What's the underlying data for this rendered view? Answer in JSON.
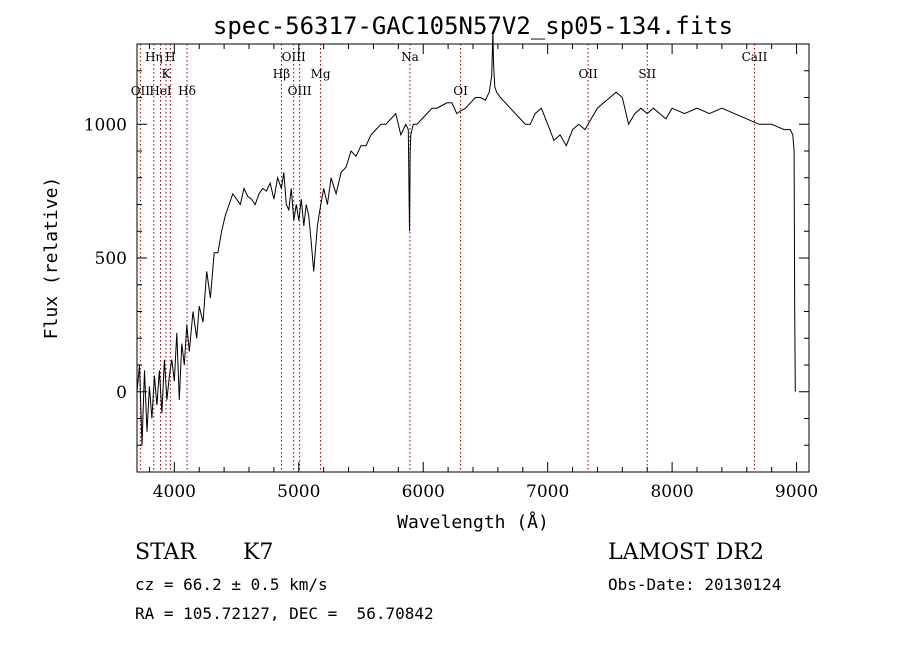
{
  "chart_data": {
    "type": "line",
    "title": "spec-56317-GAC105N57V2_sp05-134.fits",
    "xlabel": "Wavelength (Å)",
    "ylabel": "Flux (relative)",
    "xlim": [
      3700,
      9100
    ],
    "ylim": [
      -300,
      1300
    ],
    "xticks": [
      4000,
      5000,
      6000,
      7000,
      8000,
      9000
    ],
    "yticks": [
      0,
      500,
      1000
    ],
    "series": [
      {
        "x": [
          3700,
          3720,
          3740,
          3760,
          3780,
          3800,
          3820,
          3840,
          3860,
          3880,
          3900,
          3920,
          3940,
          3960,
          3980,
          4000,
          4020,
          4040,
          4060,
          4080,
          4100,
          4120,
          4150,
          4180,
          4200,
          4230,
          4260,
          4290,
          4320,
          4350,
          4380,
          4410,
          4440,
          4470,
          4500,
          4530,
          4560,
          4590,
          4620,
          4650,
          4680,
          4710,
          4740,
          4770,
          4800,
          4830,
          4860,
          4880,
          4900,
          4920,
          4940,
          4960,
          4980,
          5000,
          5020,
          5040,
          5060,
          5080,
          5100,
          5120,
          5150,
          5170,
          5185,
          5200,
          5230,
          5260,
          5300,
          5340,
          5380,
          5420,
          5460,
          5500,
          5540,
          5580,
          5620,
          5660,
          5700,
          5740,
          5780,
          5820,
          5860,
          5880,
          5890,
          5895,
          5900,
          5920,
          5950,
          5990,
          6030,
          6070,
          6110,
          6150,
          6190,
          6230,
          6270,
          6300,
          6340,
          6380,
          6420,
          6460,
          6500,
          6530,
          6550,
          6560,
          6565,
          6575,
          6590,
          6620,
          6660,
          6700,
          6740,
          6780,
          6820,
          6860,
          6900,
          6950,
          7000,
          7050,
          7100,
          7150,
          7200,
          7250,
          7300,
          7350,
          7400,
          7450,
          7500,
          7550,
          7600,
          7650,
          7700,
          7750,
          7800,
          7850,
          7900,
          7950,
          8000,
          8100,
          8200,
          8300,
          8400,
          8500,
          8600,
          8700,
          8800,
          8850,
          8900,
          8950,
          8970,
          8980,
          8985,
          8990
        ],
        "y": [
          0,
          100,
          -200,
          80,
          -150,
          20,
          -100,
          60,
          -50,
          80,
          -80,
          120,
          -30,
          60,
          120,
          40,
          220,
          -30,
          180,
          100,
          250,
          150,
          300,
          200,
          320,
          260,
          450,
          350,
          520,
          520,
          600,
          660,
          700,
          740,
          720,
          700,
          760,
          730,
          720,
          700,
          740,
          760,
          750,
          780,
          720,
          800,
          760,
          820,
          700,
          680,
          760,
          640,
          700,
          640,
          720,
          620,
          700,
          660,
          560,
          450,
          620,
          680,
          720,
          760,
          700,
          800,
          740,
          820,
          840,
          900,
          880,
          920,
          920,
          960,
          980,
          1000,
          1000,
          1020,
          1040,
          960,
          1000,
          980,
          600,
          900,
          960,
          1000,
          1000,
          1020,
          1040,
          1060,
          1060,
          1070,
          1080,
          1080,
          1040,
          1050,
          1060,
          1080,
          1100,
          1100,
          1090,
          1120,
          1180,
          1350,
          1230,
          1140,
          1120,
          1100,
          1080,
          1060,
          1040,
          1020,
          1000,
          1000,
          1040,
          1060,
          1000,
          940,
          960,
          920,
          980,
          1000,
          980,
          1020,
          1060,
          1080,
          1100,
          1120,
          1100,
          1000,
          1040,
          1060,
          1040,
          1060,
          1040,
          1020,
          1060,
          1040,
          1060,
          1040,
          1060,
          1040,
          1020,
          1000,
          1000,
          990,
          980,
          980,
          960,
          900,
          300,
          0
        ]
      }
    ],
    "lines": [
      {
        "label": "OII",
        "x": 3727,
        "row": 3
      },
      {
        "label": "Hη",
        "x": 3835,
        "row": 1
      },
      {
        "label": "HeI",
        "x": 3889,
        "row": 3
      },
      {
        "label": "K",
        "x": 3933,
        "row": 2
      },
      {
        "label": "H",
        "x": 3968,
        "row": 1
      },
      {
        "label": "Hδ",
        "x": 4102,
        "row": 3
      },
      {
        "label": "Hβ",
        "x": 4861,
        "row": 2
      },
      {
        "label": "OIII",
        "x": 4959,
        "row": 1
      },
      {
        "label": "OIII",
        "x": 5007,
        "row": 3
      },
      {
        "label": "Mg",
        "x": 5175,
        "row": 2
      },
      {
        "label": "Na",
        "x": 5893,
        "row": 1
      },
      {
        "label": "OI",
        "x": 6300,
        "row": 3
      },
      {
        "label": "OII",
        "x": 7325,
        "row": 2
      },
      {
        "label": "SII",
        "x": 7800,
        "row": 2
      },
      {
        "label": "CaII",
        "x": 8662,
        "row": 1
      }
    ],
    "line_color": "#8b0000",
    "grid": false
  },
  "info": {
    "class": "STAR",
    "subclass": "K7",
    "survey": "LAMOST DR2",
    "cz": "cz = 66.2 ± 0.5 km/s",
    "obs_date": "Obs-Date: 20130124",
    "radec": "RA = 105.72127, DEC =  56.70842"
  }
}
